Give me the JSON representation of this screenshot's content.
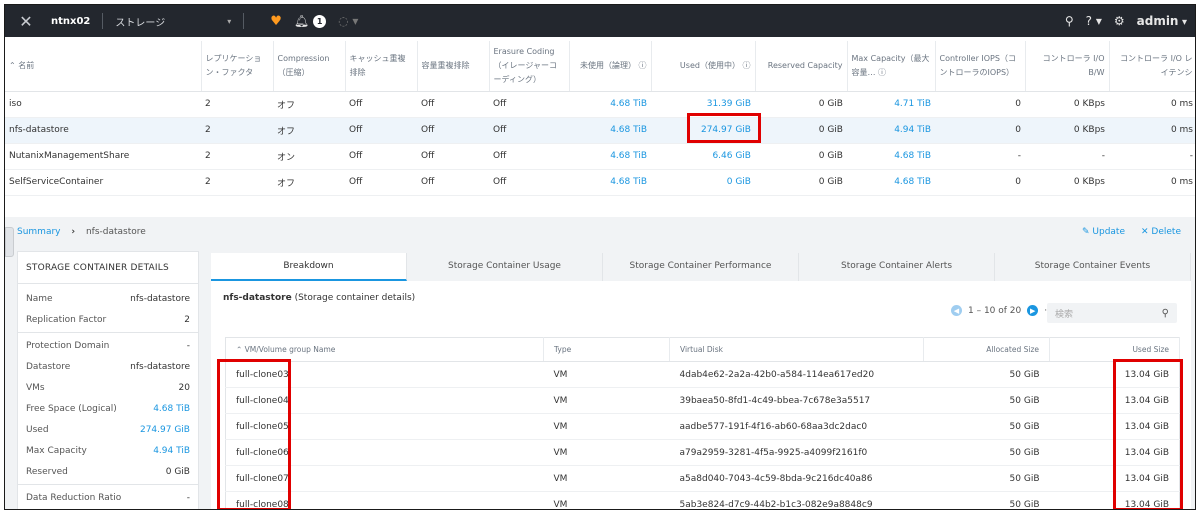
{
  "topnav": {
    "cluster": "ntnx02",
    "view": "ストレージ",
    "alert_count": "1",
    "user": "admin"
  },
  "container_table": {
    "headers": {
      "name": "名前",
      "replication": "レプリケーション・ファクタ",
      "compression": "Compression（圧縮）",
      "cache_dedup": "キャッシュ重複排除",
      "capacity_dedup": "容量重複排除",
      "erasure_coding": "Erasure Coding（イレージャーコーディング）",
      "free_logical": "未使用（論理）",
      "used": "Used（使用中）",
      "reserved": "Reserved Capacity",
      "max_capacity": "Max Capacity（最大容量…",
      "controller_iops": "Controller IOPS（コントローラのIOPS）",
      "controller_bw": "コントローラ I/O B/W",
      "controller_latency": "コントローラ I/O レイテンシ"
    },
    "rows": [
      {
        "name": "iso",
        "rf": "2",
        "compression": "オフ",
        "cache_dedup": "Off",
        "cap_dedup": "Off",
        "ec": "Off",
        "free": "4.68 TiB",
        "used": "31.39 GiB",
        "reserved": "0 GiB",
        "max": "4.71 TiB",
        "iops": "0",
        "bw": "0 KBps",
        "latency": "0 ms"
      },
      {
        "name": "nfs-datastore",
        "rf": "2",
        "compression": "オフ",
        "cache_dedup": "Off",
        "cap_dedup": "Off",
        "ec": "Off",
        "free": "4.68 TiB",
        "used": "274.97 GiB",
        "reserved": "0 GiB",
        "max": "4.94 TiB",
        "iops": "0",
        "bw": "0 KBps",
        "latency": "0 ms"
      },
      {
        "name": "NutanixManagementShare",
        "rf": "2",
        "compression": "オン",
        "cache_dedup": "Off",
        "cap_dedup": "Off",
        "ec": "Off",
        "free": "4.68 TiB",
        "used": "6.46 GiB",
        "reserved": "0 GiB",
        "max": "4.68 TiB",
        "iops": "-",
        "bw": "-",
        "latency": "-"
      },
      {
        "name": "SelfServiceContainer",
        "rf": "2",
        "compression": "オフ",
        "cache_dedup": "Off",
        "cap_dedup": "Off",
        "ec": "Off",
        "free": "4.68 TiB",
        "used": "0 GiB",
        "reserved": "0 GiB",
        "max": "4.68 TiB",
        "iops": "0",
        "bw": "0 KBps",
        "latency": "0 ms"
      }
    ]
  },
  "breadcrumb": {
    "root": "Summary",
    "current": "nfs-datastore"
  },
  "actions": {
    "update": "Update",
    "delete": "Delete"
  },
  "details": {
    "title": "STORAGE CONTAINER DETAILS",
    "rows": [
      {
        "k": "Name",
        "v": "nfs-datastore"
      },
      {
        "k": "Replication Factor",
        "v": "2"
      },
      {
        "k": "Protection Domain",
        "v": "-"
      },
      {
        "k": "Datastore",
        "v": "nfs-datastore"
      },
      {
        "k": "VMs",
        "v": "20"
      },
      {
        "k": "Free Space (Logical)",
        "v": "4.68 TiB"
      },
      {
        "k": "Used",
        "v": "274.97 GiB"
      },
      {
        "k": "Max Capacity",
        "v": "4.94 TiB"
      },
      {
        "k": "Reserved",
        "v": "0 GiB"
      },
      {
        "k": "Data Reduction Ratio",
        "v": "-"
      }
    ]
  },
  "tabs": [
    "Breakdown",
    "Storage Container Usage",
    "Storage Container Performance",
    "Storage Container Alerts",
    "Storage Container Events"
  ],
  "breakdown": {
    "title_bold": "nfs-datastore",
    "title_rest": " (Storage container details)",
    "pager": "1 – 10 of 20",
    "search_placeholder": "検索",
    "headers": {
      "name": "VM/Volume group Name",
      "type": "Type",
      "disk": "Virtual Disk",
      "allocated": "Allocated Size",
      "used": "Used Size"
    },
    "rows": [
      {
        "name": "full-clone03",
        "type": "VM",
        "disk": "4dab4e62-2a2a-42b0-a584-114ea617ed20",
        "allocated": "50 GiB",
        "used": "13.04 GiB"
      },
      {
        "name": "full-clone04",
        "type": "VM",
        "disk": "39baea50-8fd1-4c49-bbea-7c678e3a5517",
        "allocated": "50 GiB",
        "used": "13.04 GiB"
      },
      {
        "name": "full-clone05",
        "type": "VM",
        "disk": "aadbe577-191f-4f16-ab60-68aa3dc2dac0",
        "allocated": "50 GiB",
        "used": "13.04 GiB"
      },
      {
        "name": "full-clone06",
        "type": "VM",
        "disk": "a79a2959-3281-4f5a-9925-a4099f2161f0",
        "allocated": "50 GiB",
        "used": "13.04 GiB"
      },
      {
        "name": "full-clone07",
        "type": "VM",
        "disk": "a5a8d040-7043-4c59-8bda-9c216dc40a86",
        "allocated": "50 GiB",
        "used": "13.04 GiB"
      },
      {
        "name": "full-clone08",
        "type": "VM",
        "disk": "5ab3e824-d7c9-44b2-b1c3-082e9a8848c9",
        "allocated": "50 GiB",
        "used": "13.04 GiB"
      }
    ]
  }
}
